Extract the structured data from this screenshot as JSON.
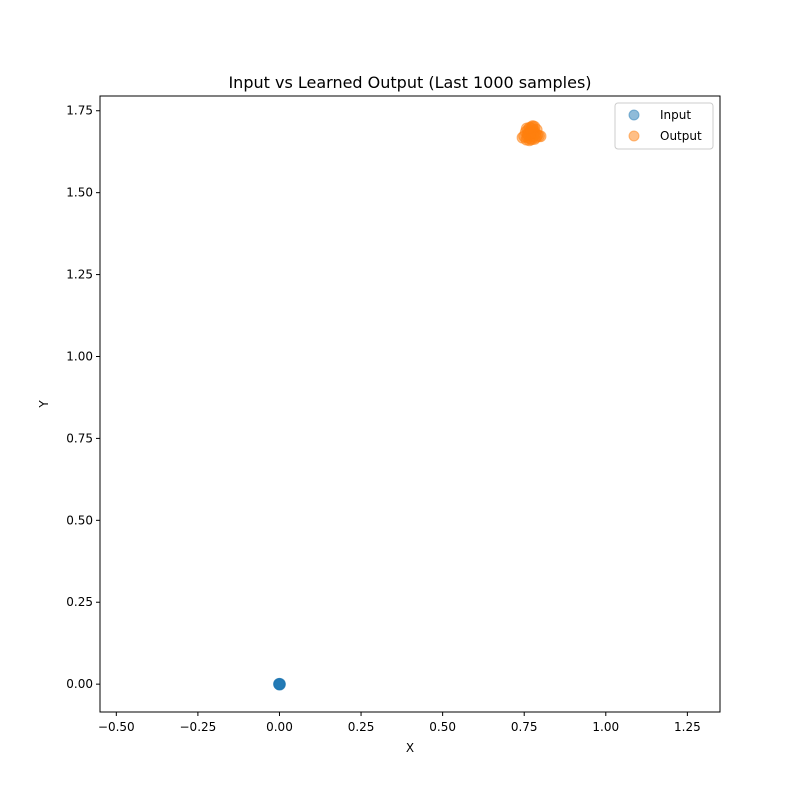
{
  "chart_data": {
    "type": "scatter",
    "title": "Input vs Learned Output (Last 1000 samples)",
    "xlabel": "X",
    "ylabel": "Y",
    "xlim": [
      -0.55,
      1.35
    ],
    "ylim": [
      -0.085,
      1.795
    ],
    "xticks": [
      -0.5,
      -0.25,
      0.0,
      0.25,
      0.5,
      0.75,
      1.0,
      1.25
    ],
    "xtick_labels": [
      "−0.50",
      "−0.25",
      "0.00",
      "0.25",
      "0.50",
      "0.75",
      "1.00",
      "1.25"
    ],
    "yticks": [
      0.0,
      0.25,
      0.5,
      0.75,
      1.0,
      1.25,
      1.5,
      1.75
    ],
    "ytick_labels": [
      "0.00",
      "0.25",
      "0.50",
      "0.75",
      "1.00",
      "1.25",
      "1.50",
      "1.75"
    ],
    "grid": false,
    "legend_position": "top-right",
    "series": [
      {
        "name": "Input",
        "color": "#1f77b4",
        "alpha": 0.5,
        "points": [
          [
            0.0,
            0.0
          ],
          [
            0.001,
            0.001
          ],
          [
            -0.001,
            0.0
          ],
          [
            0.0,
            -0.001
          ],
          [
            0.001,
            -0.001
          ],
          [
            -0.001,
            0.001
          ]
        ]
      },
      {
        "name": "Output",
        "color": "#ff7f0e",
        "alpha": 0.5,
        "points": [
          [
            0.77,
            1.68
          ],
          [
            0.765,
            1.675
          ],
          [
            0.775,
            1.685
          ],
          [
            0.78,
            1.69
          ],
          [
            0.76,
            1.67
          ],
          [
            0.772,
            1.695
          ],
          [
            0.768,
            1.665
          ],
          [
            0.785,
            1.68
          ],
          [
            0.755,
            1.685
          ],
          [
            0.778,
            1.672
          ],
          [
            0.762,
            1.692
          ],
          [
            0.79,
            1.675
          ],
          [
            0.75,
            1.672
          ],
          [
            0.774,
            1.7
          ],
          [
            0.766,
            1.66
          ],
          [
            0.782,
            1.664
          ],
          [
            0.758,
            1.696
          ],
          [
            0.788,
            1.692
          ],
          [
            0.77,
            1.675
          ],
          [
            0.764,
            1.682
          ],
          [
            0.795,
            1.673
          ],
          [
            0.745,
            1.668
          ],
          [
            0.776,
            1.703
          ],
          [
            0.769,
            1.687
          ],
          [
            0.781,
            1.701
          ],
          [
            0.757,
            1.662
          ],
          [
            0.773,
            1.663
          ],
          [
            0.786,
            1.669
          ],
          [
            0.761,
            1.678
          ],
          [
            0.779,
            1.683
          ],
          [
            0.8,
            1.672
          ],
          [
            0.767,
            1.698
          ]
        ]
      }
    ]
  }
}
